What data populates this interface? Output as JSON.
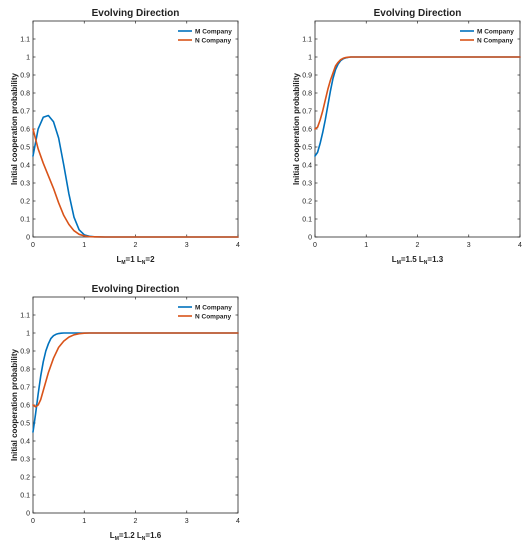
{
  "chart_data": [
    {
      "type": "line",
      "title": "Evolving Direction",
      "ylabel": "Initial cooperation probability",
      "xlabel": {
        "lm_value": "1",
        "ln_value": "2"
      },
      "xlim": [
        0,
        4
      ],
      "ylim": [
        0,
        1.2
      ],
      "xticks": [
        "0",
        "1",
        "2",
        "3",
        "4"
      ],
      "yticks": [
        "0",
        "0.1",
        "0.2",
        "0.3",
        "0.4",
        "0.5",
        "0.6",
        "0.7",
        "0.8",
        "0.9",
        "1",
        "1.1"
      ],
      "legend": "top-right",
      "series": [
        {
          "name": "M Company",
          "color": "#0072BD",
          "x": [
            0,
            0.1,
            0.2,
            0.3,
            0.4,
            0.5,
            0.6,
            0.7,
            0.8,
            0.9,
            1.0,
            1.1,
            1.2,
            1.4,
            1.6,
            2,
            3,
            4
          ],
          "y": [
            0.45,
            0.6,
            0.665,
            0.675,
            0.64,
            0.55,
            0.4,
            0.24,
            0.11,
            0.04,
            0.012,
            0.004,
            0.001,
            0,
            0,
            0,
            0,
            0
          ]
        },
        {
          "name": "N Company",
          "color": "#D95319",
          "x": [
            0,
            0.1,
            0.2,
            0.3,
            0.4,
            0.5,
            0.6,
            0.7,
            0.8,
            0.9,
            1.0,
            1.1,
            1.2,
            1.4,
            1.6,
            2,
            3,
            4
          ],
          "y": [
            0.6,
            0.49,
            0.41,
            0.34,
            0.27,
            0.19,
            0.12,
            0.07,
            0.035,
            0.015,
            0.006,
            0.002,
            0.001,
            0,
            0,
            0,
            0,
            0
          ]
        }
      ]
    },
    {
      "type": "line",
      "title": "Evolving Direction",
      "ylabel": "Initial cooperation probability",
      "xlabel": {
        "lm_value": "1.5",
        "ln_value": "1.3"
      },
      "xlim": [
        0,
        4
      ],
      "ylim": [
        0,
        1.2
      ],
      "xticks": [
        "0",
        "1",
        "2",
        "3",
        "4"
      ],
      "yticks": [
        "0",
        "0.1",
        "0.2",
        "0.3",
        "0.4",
        "0.5",
        "0.6",
        "0.7",
        "0.8",
        "0.9",
        "1",
        "1.1"
      ],
      "legend": "top-right",
      "series": [
        {
          "name": "M Company",
          "color": "#0072BD",
          "x": [
            0,
            0.05,
            0.1,
            0.15,
            0.2,
            0.25,
            0.3,
            0.35,
            0.4,
            0.45,
            0.5,
            0.55,
            0.6,
            0.65,
            0.7,
            0.8,
            0.9,
            1.0,
            1.5,
            2,
            3,
            4
          ],
          "y": [
            0.45,
            0.47,
            0.52,
            0.58,
            0.65,
            0.73,
            0.81,
            0.88,
            0.93,
            0.96,
            0.98,
            0.99,
            0.995,
            0.998,
            1.0,
            1.0,
            1.0,
            1.0,
            1.0,
            1.0,
            1.0,
            1.0
          ]
        },
        {
          "name": "N Company",
          "color": "#D95319",
          "x": [
            0,
            0.05,
            0.1,
            0.15,
            0.2,
            0.25,
            0.3,
            0.35,
            0.4,
            0.45,
            0.5,
            0.55,
            0.6,
            0.65,
            0.7,
            0.8,
            0.9,
            1.0,
            1.5,
            2,
            3,
            4
          ],
          "y": [
            0.6,
            0.61,
            0.65,
            0.7,
            0.76,
            0.82,
            0.87,
            0.91,
            0.95,
            0.97,
            0.985,
            0.993,
            0.997,
            0.999,
            1.0,
            1.0,
            1.0,
            1.0,
            1.0,
            1.0,
            1.0,
            1.0
          ]
        }
      ]
    },
    {
      "type": "line",
      "title": "Evolving Direction",
      "ylabel": "Initial cooperation probability",
      "xlabel": {
        "lm_value": "1.2",
        "ln_value": "1.6"
      },
      "xlim": [
        0,
        4
      ],
      "ylim": [
        0,
        1.2
      ],
      "xticks": [
        "0",
        "1",
        "2",
        "3",
        "4"
      ],
      "yticks": [
        "0",
        "0.1",
        "0.2",
        "0.3",
        "0.4",
        "0.5",
        "0.6",
        "0.7",
        "0.8",
        "0.9",
        "1",
        "1.1"
      ],
      "legend": "top-right",
      "series": [
        {
          "name": "M Company",
          "color": "#0072BD",
          "x": [
            0,
            0.05,
            0.1,
            0.15,
            0.2,
            0.25,
            0.3,
            0.35,
            0.4,
            0.45,
            0.5,
            0.55,
            0.6,
            0.7,
            0.8,
            1.0,
            1.5,
            2,
            3,
            4
          ],
          "y": [
            0.45,
            0.55,
            0.66,
            0.76,
            0.84,
            0.9,
            0.94,
            0.97,
            0.985,
            0.993,
            0.997,
            0.999,
            1.0,
            1.0,
            1.0,
            1.0,
            1.0,
            1.0,
            1.0,
            1.0
          ]
        },
        {
          "name": "N Company",
          "color": "#D95319",
          "x": [
            0,
            0.05,
            0.1,
            0.15,
            0.2,
            0.3,
            0.4,
            0.5,
            0.6,
            0.7,
            0.8,
            0.9,
            1.0,
            1.1,
            1.2,
            1.5,
            2,
            3,
            4
          ],
          "y": [
            0.6,
            0.59,
            0.6,
            0.63,
            0.68,
            0.78,
            0.86,
            0.92,
            0.955,
            0.977,
            0.99,
            0.996,
            0.999,
            1.0,
            1.0,
            1.0,
            1.0,
            1.0,
            1.0
          ]
        }
      ]
    }
  ]
}
